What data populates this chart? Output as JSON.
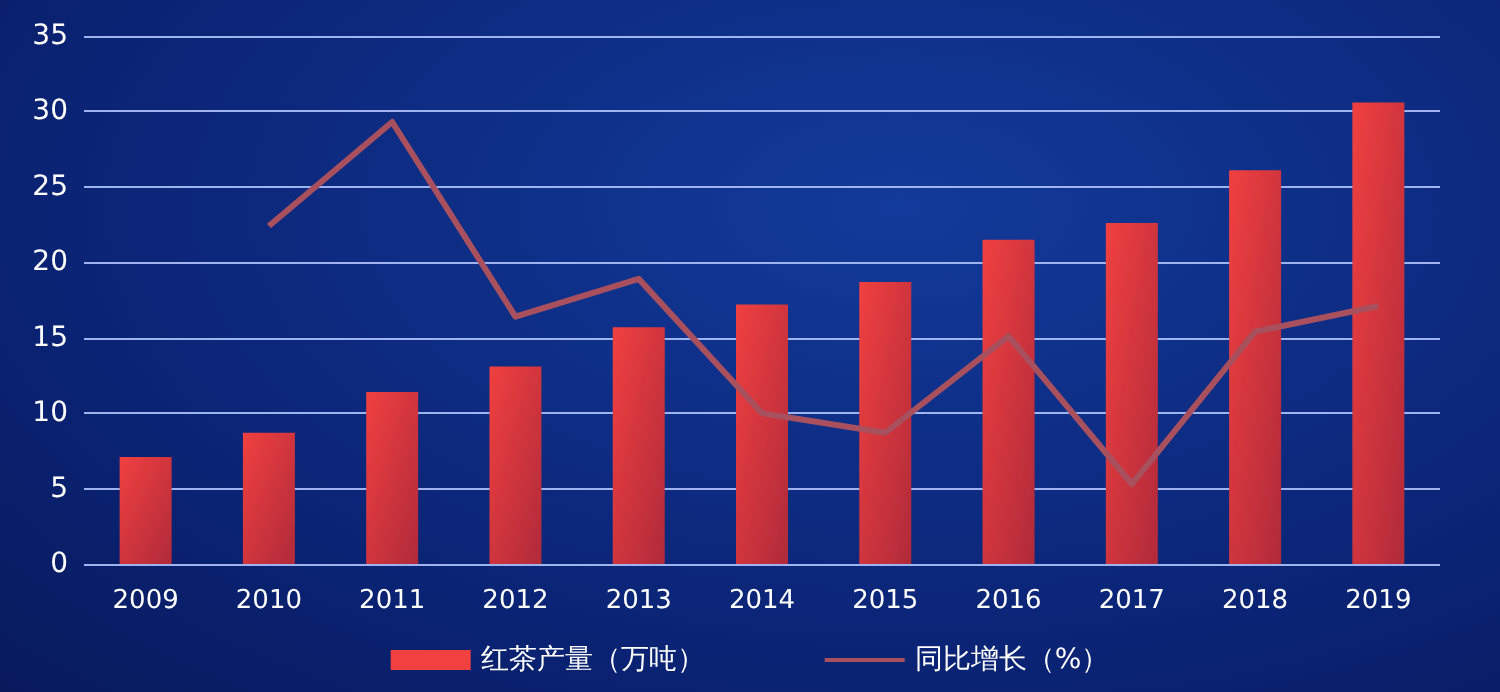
{
  "chart_data": {
    "type": "bar",
    "categories": [
      "2009",
      "2010",
      "2011",
      "2012",
      "2013",
      "2014",
      "2015",
      "2016",
      "2017",
      "2018",
      "2019"
    ],
    "series": [
      {
        "name": "红茶产量（万吨）",
        "color": "#f04040",
        "values": [
          7.1,
          8.7,
          11.4,
          13.1,
          15.7,
          17.2,
          18.7,
          21.5,
          22.6,
          26.1,
          30.6
        ]
      },
      {
        "name": "同比增长（%）",
        "type": "line",
        "color": "#a8505e",
        "values": [
          null,
          22.4,
          29.3,
          16.4,
          18.9,
          10,
          8.7,
          15.1,
          5.3,
          15.4,
          17.1
        ]
      }
    ],
    "ylim": [
      0,
      35
    ],
    "yticks": [
      0,
      5,
      10,
      15,
      20,
      25,
      30,
      35
    ],
    "grid": "y",
    "legend": "bottom",
    "marker": "none"
  }
}
